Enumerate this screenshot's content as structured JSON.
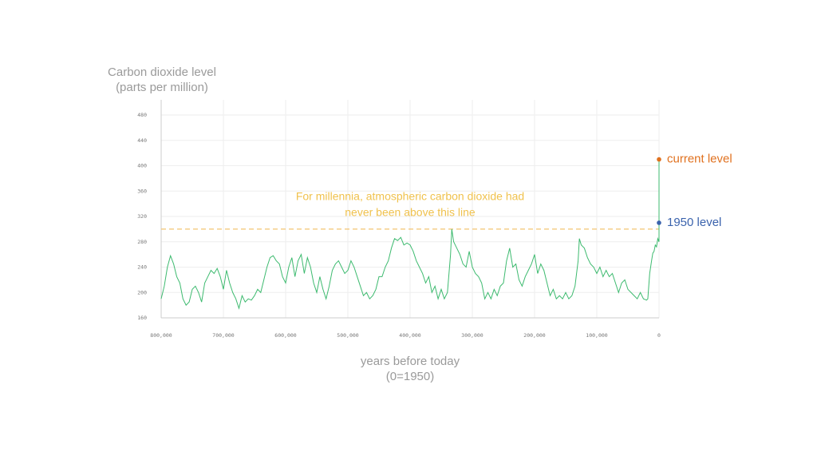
{
  "chart_data": {
    "type": "line",
    "y_label_lines": [
      "Carbon dioxide level",
      "(parts per million)"
    ],
    "x_label_lines": [
      "years before today",
      "(0=1950)"
    ],
    "annotation_lines": [
      "For millennia, atmospheric carbon dioxide had",
      "never been above this line"
    ],
    "reference_line": {
      "value": 300,
      "color": "#f3c470"
    },
    "points": [
      {
        "x": 0,
        "value": 410,
        "label": "current level",
        "color": "#e0711f"
      },
      {
        "x": 0,
        "value": 310,
        "label": "1950 level",
        "color": "#3b63ad"
      }
    ],
    "x": [
      800000,
      795000,
      790000,
      785000,
      780000,
      775000,
      770000,
      765000,
      760000,
      755000,
      750000,
      745000,
      740000,
      735000,
      730000,
      725000,
      720000,
      715000,
      710000,
      705000,
      700000,
      695000,
      690000,
      685000,
      680000,
      675000,
      670000,
      665000,
      660000,
      655000,
      650000,
      645000,
      640000,
      635000,
      630000,
      625000,
      620000,
      615000,
      610000,
      605000,
      600000,
      595000,
      590000,
      585000,
      580000,
      575000,
      570000,
      565000,
      560000,
      555000,
      550000,
      545000,
      540000,
      535000,
      530000,
      525000,
      520000,
      515000,
      510000,
      505000,
      500000,
      495000,
      490000,
      485000,
      480000,
      475000,
      470000,
      465000,
      460000,
      455000,
      450000,
      445000,
      440000,
      435000,
      430000,
      425000,
      420000,
      415000,
      410000,
      405000,
      400000,
      395000,
      390000,
      385000,
      380000,
      375000,
      370000,
      365000,
      360000,
      355000,
      350000,
      345000,
      340000,
      335000,
      333000,
      330000,
      325000,
      320000,
      315000,
      310000,
      305000,
      300000,
      295000,
      290000,
      285000,
      280000,
      275000,
      270000,
      265000,
      260000,
      255000,
      250000,
      245000,
      240000,
      235000,
      230000,
      225000,
      220000,
      215000,
      210000,
      205000,
      200000,
      195000,
      190000,
      185000,
      180000,
      175000,
      170000,
      165000,
      160000,
      155000,
      150000,
      145000,
      140000,
      135000,
      130000,
      128000,
      125000,
      120000,
      115000,
      110000,
      105000,
      100000,
      95000,
      90000,
      85000,
      80000,
      75000,
      70000,
      65000,
      60000,
      55000,
      50000,
      45000,
      40000,
      35000,
      30000,
      25000,
      20000,
      18000,
      15000,
      12000,
      10000,
      8000,
      6000,
      4000,
      2000,
      0,
      0
    ],
    "series": [
      {
        "color": "#3dba6f",
        "values": [
          190,
          210,
          240,
          258,
          245,
          225,
          215,
          190,
          180,
          185,
          205,
          210,
          200,
          185,
          215,
          225,
          235,
          230,
          238,
          225,
          205,
          235,
          215,
          200,
          190,
          175,
          195,
          185,
          190,
          188,
          195,
          205,
          200,
          220,
          240,
          255,
          258,
          250,
          245,
          225,
          215,
          240,
          255,
          225,
          250,
          260,
          230,
          255,
          240,
          215,
          200,
          225,
          205,
          190,
          210,
          235,
          245,
          250,
          240,
          230,
          235,
          250,
          240,
          225,
          210,
          195,
          200,
          190,
          195,
          205,
          225,
          225,
          240,
          250,
          270,
          285,
          282,
          287,
          275,
          278,
          275,
          265,
          250,
          240,
          230,
          215,
          225,
          200,
          210,
          190,
          205,
          190,
          200,
          260,
          300,
          280,
          270,
          260,
          245,
          240,
          265,
          240,
          230,
          225,
          215,
          190,
          200,
          190,
          205,
          195,
          210,
          215,
          250,
          270,
          240,
          245,
          220,
          210,
          225,
          235,
          245,
          260,
          230,
          245,
          235,
          215,
          195,
          205,
          190,
          195,
          190,
          200,
          190,
          195,
          210,
          250,
          285,
          275,
          270,
          255,
          245,
          240,
          230,
          240,
          225,
          235,
          225,
          230,
          215,
          200,
          215,
          220,
          205,
          200,
          195,
          190,
          200,
          190,
          188,
          190,
          230,
          250,
          262,
          265,
          275,
          272,
          285,
          280,
          410
        ]
      }
    ],
    "xlim": [
      800000,
      0
    ],
    "ylim": [
      160,
      504
    ],
    "xticks": [
      {
        "value": 800000,
        "label": "800,000"
      },
      {
        "value": 700000,
        "label": "700,000"
      },
      {
        "value": 600000,
        "label": "600,000"
      },
      {
        "value": 500000,
        "label": "500,000"
      },
      {
        "value": 400000,
        "label": "400,000"
      },
      {
        "value": 300000,
        "label": "300,000"
      },
      {
        "value": 200000,
        "label": "200,000"
      },
      {
        "value": 100000,
        "label": "100,000"
      },
      0
    ],
    "yticks": [
      160,
      200,
      240,
      280,
      320,
      360,
      400,
      440,
      480
    ],
    "grid": true
  }
}
